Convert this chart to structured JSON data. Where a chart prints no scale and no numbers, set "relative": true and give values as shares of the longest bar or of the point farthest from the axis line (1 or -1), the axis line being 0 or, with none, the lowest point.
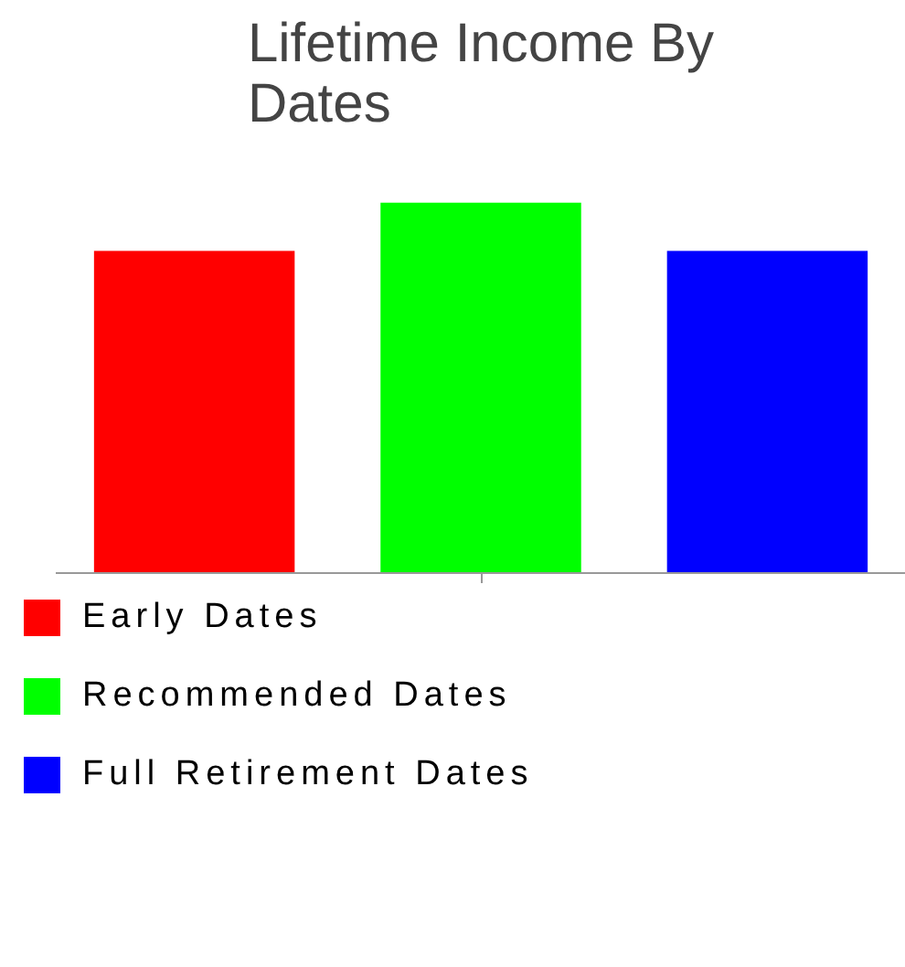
{
  "chart_data": {
    "type": "bar",
    "title": "Lifetime Income By Dates",
    "categories": [
      null
    ],
    "relative": true,
    "legend": "bottom",
    "series": [
      {
        "name": "Early Dates",
        "color": "#ff0000",
        "values": [
          0.87
        ]
      },
      {
        "name": "Recommended Dates",
        "color": "#00ff00",
        "values": [
          1
        ]
      },
      {
        "name": "Full Retirement Dates",
        "color": "#0000ff",
        "values": [
          0.87
        ]
      }
    ]
  }
}
